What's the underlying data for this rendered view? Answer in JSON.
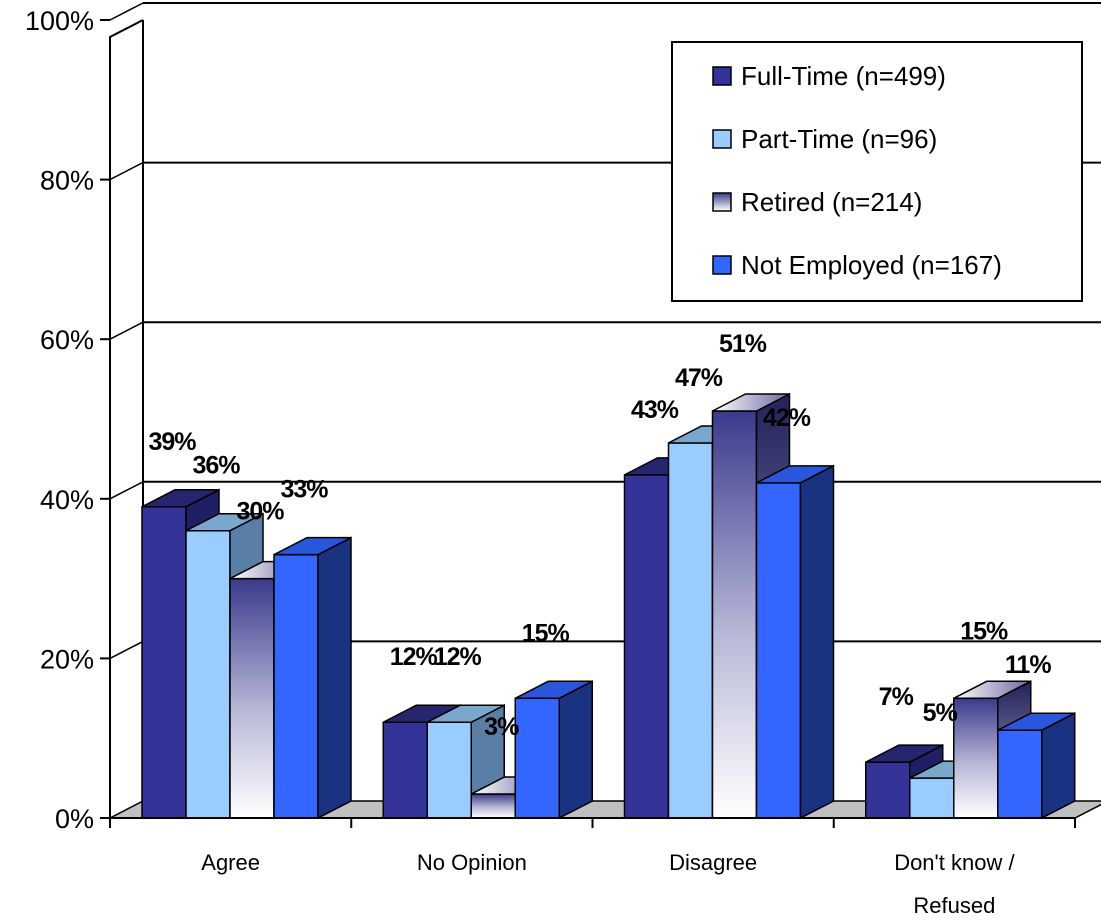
{
  "chart_data": {
    "type": "bar",
    "categories": [
      "Agree",
      "No Opinion",
      "Disagree",
      "Don't know / Refused"
    ],
    "category_lines": [
      [
        "Agree"
      ],
      [
        "No Opinion"
      ],
      [
        "Disagree"
      ],
      [
        "Don't know /",
        "Refused"
      ]
    ],
    "series": [
      {
        "name": "Full-Time (n=499)",
        "values": [
          39,
          12,
          43,
          7
        ],
        "labels": [
          "39%",
          "12%",
          "43%",
          "7%"
        ],
        "color": "#333399"
      },
      {
        "name": "Part-Time (n=96)",
        "values": [
          36,
          12,
          47,
          5
        ],
        "labels": [
          "36%",
          "12%",
          "47%",
          "5%"
        ],
        "color": "#99ccff"
      },
      {
        "name": "Retired (n=214)",
        "values": [
          30,
          3,
          51,
          15
        ],
        "labels": [
          "30%",
          "3%",
          "51%",
          "15%"
        ],
        "color": "#3a3a8c"
      },
      {
        "name": "Not Employed (n=167)",
        "values": [
          33,
          15,
          42,
          11
        ],
        "labels": [
          "33%",
          "15%",
          "42%",
          "11%"
        ],
        "color": "#3366ff"
      }
    ],
    "yticks": [
      "0%",
      "20%",
      "40%",
      "60%",
      "80%",
      "100%"
    ],
    "ylim": [
      0,
      100
    ],
    "grid": true,
    "legend_position": "top-right",
    "style": "3d-clustered-column"
  }
}
